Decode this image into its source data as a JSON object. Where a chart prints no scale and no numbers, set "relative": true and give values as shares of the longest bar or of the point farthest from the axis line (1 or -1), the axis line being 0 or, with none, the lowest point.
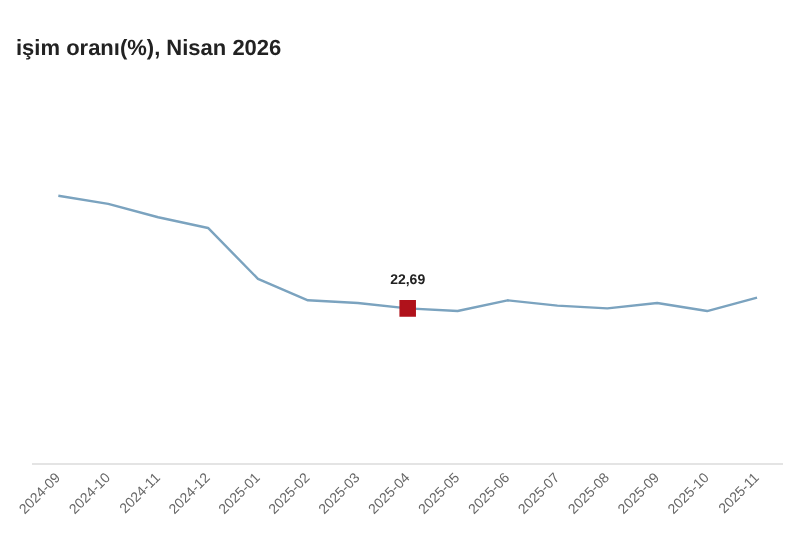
{
  "chart_data": {
    "type": "line",
    "title": "işim oranı(%), Nisan 2026",
    "relative": true,
    "categories": [
      "2024-09",
      "2024-10",
      "2024-11",
      "2024-12",
      "2025-01",
      "2025-02",
      "2025-03",
      "2025-04",
      "2025-05",
      "2025-06",
      "2025-07",
      "2025-08",
      "2025-09",
      "2025-10",
      "2025-11"
    ],
    "series": [
      {
        "color": "#7ba3bf",
        "values": [
          1,
          0.97,
          0.92,
          0.88,
          0.69,
          0.61,
          0.6,
          0.58,
          0.57,
          0.61,
          0.59,
          0.58,
          0.6,
          0.57,
          0.62
        ],
        "colors": [
          "#7ba3bf",
          "#7ba3bf",
          "#7ba3bf",
          "#7ba3bf",
          "#7ba3bf",
          "#7ba3bf",
          "#7ba3bf",
          "#b0121b",
          "#7ba3bf",
          "#7ba3bf",
          "#7ba3bf",
          "#7ba3bf",
          "#7ba3bf",
          "#7ba3bf",
          "#7ba3bf"
        ]
      }
    ],
    "annotations": [
      "22,69"
    ],
    "grid": false,
    "legend": false
  }
}
